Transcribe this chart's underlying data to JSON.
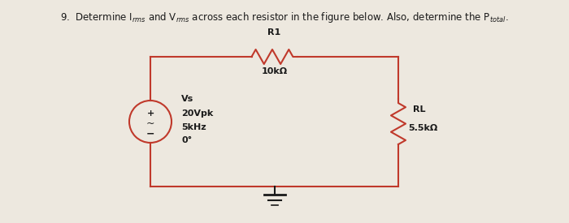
{
  "background_color": "#ede8df",
  "circuit_color": "#c0392b",
  "text_color": "#1a1a1a",
  "r1_label": "R1",
  "r1_value": "10kΩ",
  "rl_label": "RL",
  "rl_value": "5.5kΩ",
  "source_label": "Vs",
  "source_20vpk": "20Vpk",
  "source_5khz": "5kHz",
  "source_0deg": "0°",
  "title": "9.  Determine I$_{rms}$ and V$_{rms}$ across each resistor in the figure below. Also, determine the P$_{total}$."
}
